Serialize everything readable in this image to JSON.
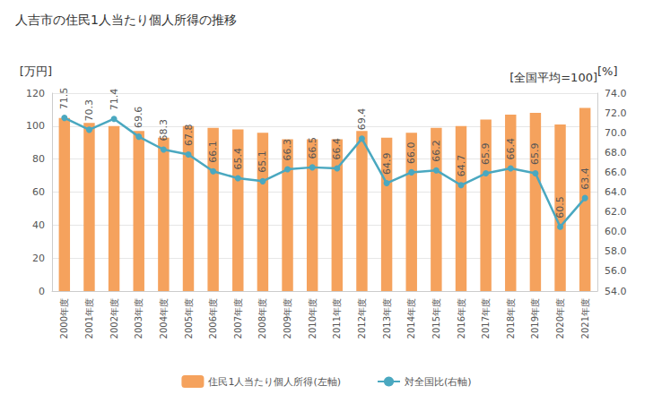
{
  "chart_data": {
    "type": "bar",
    "title": "人吉市の住民1人当たり個人所得の推移",
    "y_label": "[万円]",
    "y2_label": "[%]",
    "annotation": "[全国平均=100]",
    "categories": [
      "2000年度",
      "2001年度",
      "2002年度",
      "2003年度",
      "2004年度",
      "2005年度",
      "2006年度",
      "2007年度",
      "2008年度",
      "2009年度",
      "2010年度",
      "2011年度",
      "2012年度",
      "2013年度",
      "2014年度",
      "2015年度",
      "2016年度",
      "2017年度",
      "2018年度",
      "2019年度",
      "2020年度",
      "2021年度"
    ],
    "series": [
      {
        "name": "住民1人当たり個人所得(左軸)",
        "type": "bar",
        "color": "#f5a25d",
        "values": [
          105,
          102,
          100,
          97,
          93,
          100,
          99,
          98,
          96,
          92,
          92,
          92,
          97,
          93,
          96,
          99,
          100,
          104,
          107,
          108,
          101,
          111
        ]
      },
      {
        "name": "対全国比(右軸)",
        "type": "line",
        "axis": "y2",
        "color": "#4aa8c0",
        "marker": "circle",
        "data_labels": true,
        "values": [
          71.5,
          70.3,
          71.4,
          69.6,
          68.3,
          67.8,
          66.1,
          65.4,
          65.1,
          66.3,
          66.5,
          66.4,
          69.4,
          64.9,
          66.0,
          66.2,
          64.7,
          65.9,
          66.4,
          65.9,
          60.5,
          63.4
        ],
        "value_labels": [
          "71.5",
          "70.3",
          "71.4",
          "69.6",
          "68.3",
          "67.8",
          "66.1",
          "65.4",
          "65.1",
          "66.3",
          "66.5",
          "66.4",
          "69.4",
          "64.9",
          "66.0",
          "66.2",
          "64.7",
          "65.9",
          "66.4",
          "65.9",
          "60.5",
          "63.4"
        ]
      }
    ],
    "ylim": [
      0,
      120
    ],
    "yticks": [
      0,
      20,
      40,
      60,
      80,
      100,
      120
    ],
    "y2lim": [
      54,
      74
    ],
    "y2ticks": [
      {
        "value": 54,
        "label": "54.0"
      },
      {
        "value": 56,
        "label": "56.0"
      },
      {
        "value": 58,
        "label": "58.0"
      },
      {
        "value": 60,
        "label": "60.0"
      },
      {
        "value": 62,
        "label": "62.0"
      },
      {
        "value": 64,
        "label": "64.0"
      },
      {
        "value": 66,
        "label": "66.0"
      },
      {
        "value": 68,
        "label": "68.0"
      },
      {
        "value": 70,
        "label": "70.0"
      },
      {
        "value": 72,
        "label": "72.0"
      },
      {
        "value": 74,
        "label": "74.0"
      }
    ],
    "grid": true,
    "legend": "bottom"
  }
}
